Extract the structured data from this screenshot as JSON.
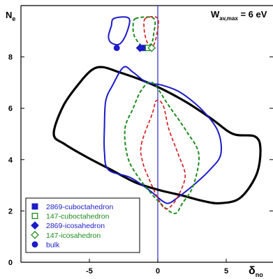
{
  "chart_data": {
    "type": "line",
    "annotation": {
      "main": "W",
      "sub": "av,max",
      "rest": " = 6 eV"
    },
    "ylabel": {
      "main": "N",
      "sub": "e"
    },
    "xlabel": {
      "main": "δ",
      "sub": "no"
    },
    "xlim": [
      -10,
      10
    ],
    "ylim": [
      0,
      10
    ],
    "xticks": [
      -5,
      0,
      5
    ],
    "yticks": [
      0,
      2,
      4,
      6,
      8
    ],
    "reference_line": {
      "x": 0,
      "color": "#2a2ad0"
    },
    "colors": {
      "black": "#000000",
      "blue": "#1c1cc8",
      "green": "#1e8c1e",
      "red": "#d01818"
    },
    "series": [
      {
        "name": "",
        "color": "black",
        "dash": false,
        "width": 3.2,
        "closed": true,
        "points": [
          [
            -7.6,
            5.0
          ],
          [
            -6.9,
            6.1
          ],
          [
            -5.7,
            7.0
          ],
          [
            -4.8,
            7.5
          ],
          [
            -4.0,
            7.6
          ],
          [
            -2.8,
            7.4
          ],
          [
            -1.2,
            7.1
          ],
          [
            0.5,
            6.7
          ],
          [
            2.2,
            6.2
          ],
          [
            3.9,
            5.6
          ],
          [
            5.5,
            5.0
          ],
          [
            7.1,
            4.9
          ],
          [
            7.5,
            4.4
          ],
          [
            7.2,
            3.4
          ],
          [
            6.0,
            2.5
          ],
          [
            4.5,
            2.3
          ],
          [
            3.2,
            2.4
          ],
          [
            1.8,
            2.6
          ],
          [
            0.2,
            2.8
          ],
          [
            -1.6,
            3.1
          ],
          [
            -3.4,
            3.6
          ],
          [
            -5.2,
            4.1
          ],
          [
            -6.8,
            4.6
          ]
        ]
      },
      {
        "name": "",
        "color": "blue",
        "dash": false,
        "width": 2,
        "closed": true,
        "points": [
          [
            -3.8,
            6.3
          ],
          [
            -3.3,
            6.9
          ],
          [
            -2.5,
            7.6
          ],
          [
            -1.8,
            7.4
          ],
          [
            -0.8,
            7.0
          ],
          [
            0.3,
            6.9
          ],
          [
            1.7,
            6.6
          ],
          [
            3.3,
            5.9
          ],
          [
            4.4,
            5.1
          ],
          [
            4.6,
            4.2
          ],
          [
            3.8,
            3.6
          ],
          [
            2.6,
            3.0
          ],
          [
            1.4,
            2.5
          ],
          [
            0.8,
            2.3
          ],
          [
            0.3,
            2.4
          ],
          [
            -0.6,
            2.8
          ],
          [
            -2.0,
            3.3
          ],
          [
            -3.6,
            3.6
          ],
          [
            -3.9,
            4.3
          ],
          [
            -3.9,
            5.3
          ]
        ]
      },
      {
        "name": "",
        "color": "blue",
        "dash": false,
        "width": 2,
        "closed": true,
        "points": [
          [
            -3.2,
            9.5
          ],
          [
            -3.4,
            9.2
          ],
          [
            -3.6,
            8.8
          ],
          [
            -3.4,
            8.55
          ],
          [
            -2.8,
            8.5
          ],
          [
            -2.3,
            8.9
          ],
          [
            -2.1,
            9.5
          ]
        ]
      },
      {
        "name": "",
        "color": "green",
        "dash": true,
        "width": 2,
        "closed": true,
        "points": [
          [
            -2.4,
            5.2
          ],
          [
            -1.8,
            6.0
          ],
          [
            -1.2,
            6.7
          ],
          [
            -0.4,
            7.0
          ],
          [
            0.8,
            6.1
          ],
          [
            2.1,
            5.1
          ],
          [
            3.0,
            4.2
          ],
          [
            2.6,
            3.0
          ],
          [
            1.8,
            2.3
          ],
          [
            1.2,
            1.9
          ],
          [
            0.0,
            2.4
          ],
          [
            -1.4,
            3.3
          ],
          [
            -2.2,
            4.1
          ]
        ]
      },
      {
        "name": "",
        "color": "green",
        "dash": true,
        "width": 2,
        "closed": true,
        "points": [
          [
            -1.6,
            9.5
          ],
          [
            -1.8,
            9.2
          ],
          [
            -1.7,
            8.8
          ],
          [
            -1.1,
            8.4
          ],
          [
            -0.5,
            8.5
          ],
          [
            -0.3,
            8.9
          ],
          [
            -0.3,
            9.5
          ]
        ]
      },
      {
        "name": "",
        "color": "red",
        "dash": true,
        "width": 1.6,
        "closed": true,
        "points": [
          [
            -1.2,
            4.6
          ],
          [
            -0.4,
            5.8
          ],
          [
            -0.1,
            6.3
          ],
          [
            0.4,
            6.1
          ],
          [
            0.8,
            5.2
          ],
          [
            1.5,
            4.2
          ],
          [
            2.0,
            3.4
          ],
          [
            1.6,
            2.7
          ],
          [
            1.0,
            2.2
          ],
          [
            0.5,
            2.1
          ],
          [
            0.0,
            2.5
          ],
          [
            -0.6,
            3.2
          ],
          [
            -1.1,
            3.9
          ]
        ]
      },
      {
        "name": "",
        "color": "red",
        "dash": true,
        "width": 1.6,
        "closed": true,
        "points": [
          [
            -0.9,
            9.5
          ],
          [
            -1.0,
            9.1
          ],
          [
            -0.8,
            8.6
          ],
          [
            -0.4,
            8.4
          ],
          [
            -0.1,
            8.8
          ],
          [
            0.0,
            9.5
          ]
        ]
      }
    ],
    "markers": [
      {
        "symbol": "circle",
        "color": "blue",
        "filled": true,
        "x": -3.0,
        "y": 8.35
      },
      {
        "symbol": "diamond",
        "color": "blue",
        "filled": true,
        "x": -1.3,
        "y": 8.35
      },
      {
        "symbol": "square",
        "color": "blue",
        "filled": true,
        "x": -1.0,
        "y": 8.35
      },
      {
        "symbol": "square",
        "color": "green",
        "filled": false,
        "x": -0.7,
        "y": 8.35
      },
      {
        "symbol": "diamond",
        "color": "green",
        "filled": false,
        "x": -0.45,
        "y": 8.35
      }
    ],
    "legend": {
      "placement": "bottom-left",
      "entries": [
        {
          "symbol": "square",
          "color": "blue",
          "filled": true,
          "label": "2869-cuboctahedron"
        },
        {
          "symbol": "square",
          "color": "green",
          "filled": false,
          "label": "147-cuboctahedron"
        },
        {
          "symbol": "diamond",
          "color": "blue",
          "filled": true,
          "label": "2869-icosahedron"
        },
        {
          "symbol": "diamond",
          "color": "green",
          "filled": false,
          "label": "147-icosahedron"
        },
        {
          "symbol": "circle",
          "color": "blue",
          "filled": true,
          "label": "bulk"
        }
      ]
    }
  }
}
